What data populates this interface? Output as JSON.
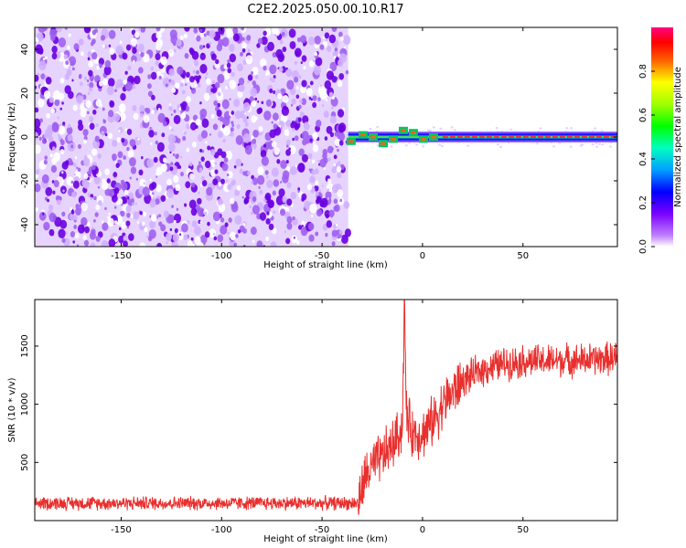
{
  "title": "C2E2.2025.050.00.10.R17",
  "colors": {
    "snr_line": "#e8302e",
    "noise": "#7a1ce0"
  },
  "chart_data": [
    {
      "type": "heatmap",
      "xlabel": "Height of straight line (km)",
      "ylabel": "Frequency (Hz)",
      "xlim": [
        -193,
        97
      ],
      "ylim": [
        -50,
        50
      ],
      "xticks": [
        "-150",
        "-100",
        "-50",
        "0",
        "50"
      ],
      "yticks": [
        "-40",
        "-20",
        "0",
        "20",
        "40"
      ],
      "colorbar": {
        "label": "Normalized spectral amplitude",
        "range": [
          0,
          1
        ],
        "ticks": [
          "0.0",
          "0.2",
          "0.4",
          "0.6",
          "0.8"
        ],
        "colormap": [
          "#b000ff",
          "#0000ff",
          "#00c8ff",
          "#00ff00",
          "#ffff00",
          "#ff0000",
          "#ff0080"
        ]
      },
      "regions": [
        {
          "x_range": [
            -193,
            -37
          ],
          "freq_range": [
            -50,
            50
          ],
          "description": "noise",
          "amplitude": 0.1
        },
        {
          "x_range": [
            -37,
            97
          ],
          "freq_center": 0,
          "description": "signal band",
          "amplitude": 0.9
        }
      ]
    },
    {
      "type": "line",
      "xlabel": "Height of straight line (km)",
      "ylabel": "SNR (10 * v/v)",
      "xlim": [
        -193,
        97
      ],
      "ylim": [
        0,
        1900
      ],
      "xticks": [
        "-150",
        "-100",
        "-50",
        "0",
        "50"
      ],
      "yticks": [
        "500",
        "1000",
        "1500"
      ],
      "series": [
        {
          "x": [
            -193,
            -150,
            -100,
            -50,
            -32,
            -28,
            -20,
            -15,
            -10,
            -9,
            -8,
            -5,
            0,
            5,
            10,
            15,
            20,
            25,
            30,
            40,
            50,
            60,
            70,
            80,
            90,
            97
          ],
          "y": [
            150,
            150,
            150,
            150,
            150,
            400,
            550,
            650,
            800,
            1900,
            900,
            750,
            750,
            850,
            1000,
            1100,
            1200,
            1250,
            1300,
            1350,
            1370,
            1370,
            1380,
            1380,
            1390,
            1400
          ]
        }
      ]
    }
  ]
}
